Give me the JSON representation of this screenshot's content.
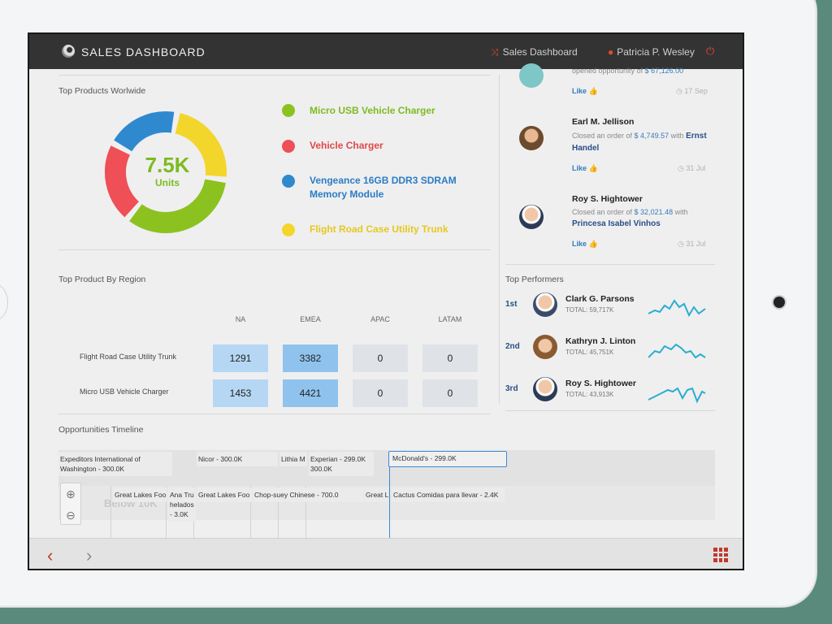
{
  "header": {
    "app_title": "SALES DASHBOARD",
    "nav_link": "Sales Dashboard",
    "user_name": "Patricia P. Wesley"
  },
  "top_products": {
    "title": "Top Products Worlwide",
    "center_value": "7.5K",
    "center_unit": "Units",
    "items": [
      {
        "label": "Micro USB Vehicle Charger",
        "color": "#8cc21f",
        "share": 0.34
      },
      {
        "label": "Vehicle Charger",
        "color": "#ef4f56",
        "share": 0.22
      },
      {
        "label": "Vengeance 16GB DDR3 SDRAM Memory Module",
        "color": "#2f89cf",
        "share": 0.2
      },
      {
        "label": "Flight Road Case Utility Trunk",
        "color": "#f3d62b",
        "share": 0.24
      }
    ]
  },
  "activity": [
    {
      "name": "",
      "text_pre": "opened opportunity of ",
      "amount": "$ 67,126.00",
      "with": "",
      "company": "",
      "like": "Like",
      "date": "17 Sep"
    },
    {
      "name": "Earl M. Jellison",
      "text_pre": "Closed an order of ",
      "amount": "$ 4,749.57",
      "with": " with ",
      "company": "Ernst Handel",
      "like": "Like",
      "date": "31 Jul"
    },
    {
      "name": "Roy S. Hightower",
      "text_pre": "Closed an order of ",
      "amount": "$ 32,021.48",
      "with": " with ",
      "company": "Princesa Isabel Vinhos",
      "like": "Like",
      "date": "31 Jul"
    }
  ],
  "region": {
    "title": "Top Product By Region",
    "columns": [
      "NA",
      "EMEA",
      "APAC",
      "LATAM"
    ],
    "rows": [
      {
        "label": "Flight Road Case Utility Trunk",
        "values": [
          "1291",
          "3382",
          "0",
          "0"
        ]
      },
      {
        "label": "Micro USB Vehicle Charger",
        "values": [
          "1453",
          "4421",
          "0",
          "0"
        ]
      }
    ]
  },
  "performers": {
    "title": "Top Performers",
    "items": [
      {
        "rank": "1st",
        "name": "Clark G. Parsons",
        "total": "TOTAL: 59,717K"
      },
      {
        "rank": "2nd",
        "name": "Kathryn J. Linton",
        "total": "TOTAL: 45,751K"
      },
      {
        "rank": "3rd",
        "name": "Roy S. Hightower",
        "total": "TOTAL: 43,913K"
      }
    ]
  },
  "timeline": {
    "title": "Opportunities Timeline",
    "row1": [
      "Expeditors International of Washington - 300.0K",
      "Nicor - 300.0K",
      "Lithia M",
      "Experian - 299.0K 300.0K",
      "McDonald's - 299.0K"
    ],
    "row2": [
      "Great Lakes Foo",
      "Ana Tru helados - 3.0K",
      "Great Lakes Foo",
      "Chop-suey Chinese - 700.0",
      "Great L",
      "Cactus Comidas para llevar - 2.4K"
    ],
    "below_label": "Below 10K"
  }
}
